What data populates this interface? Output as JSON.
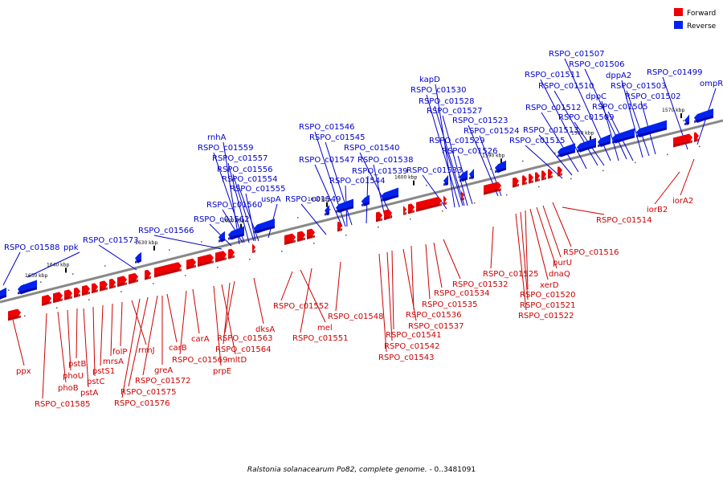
{
  "colors": {
    "forward": "#ee0000",
    "forward_dark": "#aa0000",
    "reverse": "#0022ee",
    "reverse_dark": "#000099",
    "backbone": "#888888",
    "forward_label": "#cc0000",
    "reverse_label": "#0000cc"
  },
  "legend": {
    "forward": "Forward",
    "reverse": "Reverse"
  },
  "caption": {
    "organism": "Ralstonia solanacearum Po82, complete genome.",
    "range": " - 0..3481091"
  },
  "chart_data": {
    "type": "genome-map",
    "axis_ticks": [
      "1570 kbp",
      "1580 kbp",
      "1590 kbp",
      "1600 kbp",
      "1610 kbp",
      "1620 kbp",
      "1630 kbp",
      "1640 kbp",
      "1650 kbp"
    ],
    "forward_genes": [
      "ppx",
      "RSPO_c01585",
      "phoB",
      "phoU",
      "pstB",
      "pstA",
      "pstC",
      "pstS1",
      "mrsA",
      "folP",
      "rrmJ",
      "RSPO_c01576",
      "RSPO_c01575",
      "RSPO_c01572",
      "greA",
      "carB",
      "RSPO_c01569",
      "carA",
      "prpE",
      "mltD",
      "RSPO_c01564",
      "RSPO_c01563",
      "dksA",
      "RSPO_c01552",
      "mel",
      "RSPO_c01551",
      "RSPO_c01548",
      "RSPO_c01543",
      "RSPO_c01542",
      "RSPO_c01541",
      "RSPO_c01537",
      "RSPO_c01536",
      "RSPO_c01535",
      "RSPO_c01534",
      "RSPO_c01532",
      "RSPO_c01525",
      "RSPO_c01522",
      "RSPO_c01521",
      "RSPO_c01520",
      "xerD",
      "dnaQ",
      "purU",
      "RSPO_c01516",
      "RSPO_c01514",
      "iorB2",
      "iorA2"
    ],
    "reverse_genes": [
      "RSPO_c01588",
      "ppk",
      "RSPO_c01573",
      "RSPO_c01566",
      "RSPO_c01562",
      "RSPO_c01560",
      "RSPO_c01555",
      "uspA",
      "RSPO_c01554",
      "RSPO_c01556",
      "RSPO_c01557",
      "RSPO_c01559",
      "rnhA",
      "RSPO_c01549",
      "RSPO_c01544",
      "RSPO_c01539",
      "RSPO_c01538",
      "RSPO_c01547",
      "RSPO_c01540",
      "RSPO_c01545",
      "RSPO_c01546",
      "RSPO_c01533",
      "RSPO_c01526",
      "RSPO_c01529",
      "RSPO_c01524",
      "RSPO_c01523",
      "RSPO_c01527",
      "RSPO_c01528",
      "RSPO_c01530",
      "kapD",
      "RSPO_c01515",
      "RSPO_c01513",
      "RSPO_c01512",
      "RSPO_c01509",
      "RSPO_c01505",
      "RSPO_c01502",
      "RSPO_c01503",
      "dppA2",
      "dppC",
      "RSPO_c01510",
      "RSPO_c01511",
      "RSPO_c01506",
      "RSPO_c01507",
      "RSPO_c01499",
      "ompR"
    ]
  }
}
